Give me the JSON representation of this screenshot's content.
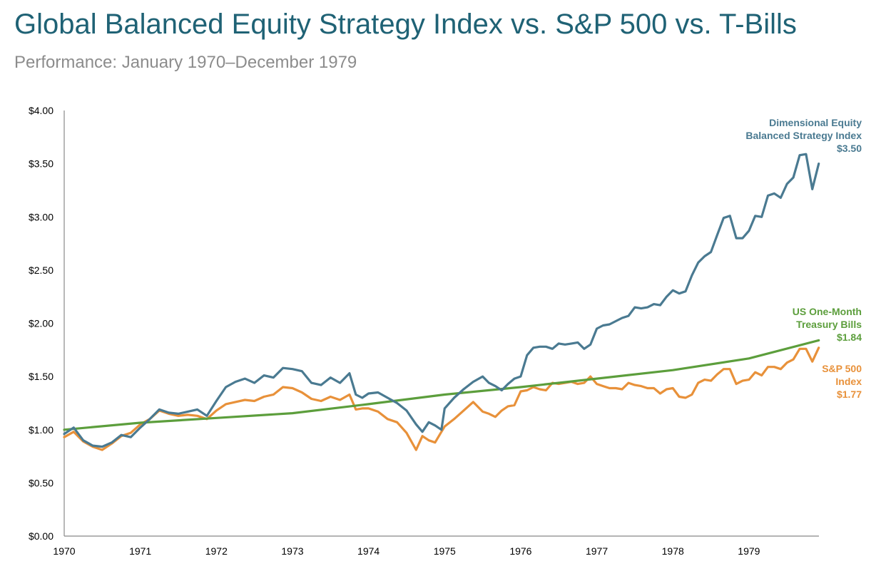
{
  "chart_data": {
    "type": "line",
    "title": "Global Balanced Equity Strategy Index vs. S&P 500 vs. T-Bills",
    "subtitle": "Performance: January 1970–December 1979",
    "xlabel": "",
    "ylabel": "",
    "xlim": [
      1970,
      1979.92
    ],
    "ylim": [
      0,
      4
    ],
    "x_ticks": [
      "1970",
      "1971",
      "1972",
      "1973",
      "1974",
      "1975",
      "1976",
      "1977",
      "1978",
      "1979"
    ],
    "y_ticks": [
      "$0.00",
      "$0.50",
      "$1.00",
      "$1.50",
      "$2.00",
      "$2.50",
      "$3.00",
      "$3.50",
      "$4.00"
    ],
    "grid": false,
    "series": [
      {
        "name": "Dimensional Equity Balanced Strategy Index",
        "label_lines": [
          "Dimensional Equity",
          "Balanced Strategy Index",
          "$3.50"
        ],
        "color": "#4a7a91",
        "points": [
          [
            1970.0,
            0.96
          ],
          [
            1970.125,
            1.02
          ],
          [
            1970.25,
            0.9
          ],
          [
            1970.375,
            0.85
          ],
          [
            1970.5,
            0.84
          ],
          [
            1970.625,
            0.88
          ],
          [
            1970.75,
            0.95
          ],
          [
            1970.875,
            0.93
          ],
          [
            1971.0,
            1.02
          ],
          [
            1971.125,
            1.1
          ],
          [
            1971.25,
            1.19
          ],
          [
            1971.375,
            1.16
          ],
          [
            1971.5,
            1.15
          ],
          [
            1971.625,
            1.17
          ],
          [
            1971.75,
            1.19
          ],
          [
            1971.875,
            1.13
          ],
          [
            1972.0,
            1.27
          ],
          [
            1972.125,
            1.4
          ],
          [
            1972.25,
            1.45
          ],
          [
            1972.375,
            1.48
          ],
          [
            1972.5,
            1.44
          ],
          [
            1972.625,
            1.51
          ],
          [
            1972.75,
            1.49
          ],
          [
            1972.875,
            1.58
          ],
          [
            1973.0,
            1.57
          ],
          [
            1973.125,
            1.55
          ],
          [
            1973.25,
            1.44
          ],
          [
            1973.375,
            1.42
          ],
          [
            1973.5,
            1.49
          ],
          [
            1973.625,
            1.44
          ],
          [
            1973.75,
            1.53
          ],
          [
            1973.833,
            1.33
          ],
          [
            1973.917,
            1.3
          ],
          [
            1974.0,
            1.34
          ],
          [
            1974.125,
            1.35
          ],
          [
            1974.25,
            1.3
          ],
          [
            1974.375,
            1.25
          ],
          [
            1974.5,
            1.18
          ],
          [
            1974.625,
            1.05
          ],
          [
            1974.708,
            0.98
          ],
          [
            1974.792,
            1.07
          ],
          [
            1974.875,
            1.04
          ],
          [
            1974.958,
            1.0
          ],
          [
            1975.0,
            1.2
          ],
          [
            1975.125,
            1.3
          ],
          [
            1975.25,
            1.38
          ],
          [
            1975.375,
            1.45
          ],
          [
            1975.5,
            1.5
          ],
          [
            1975.583,
            1.44
          ],
          [
            1975.667,
            1.41
          ],
          [
            1975.75,
            1.37
          ],
          [
            1975.833,
            1.43
          ],
          [
            1975.917,
            1.48
          ],
          [
            1976.0,
            1.5
          ],
          [
            1976.083,
            1.7
          ],
          [
            1976.167,
            1.77
          ],
          [
            1976.25,
            1.78
          ],
          [
            1976.333,
            1.78
          ],
          [
            1976.417,
            1.76
          ],
          [
            1976.5,
            1.81
          ],
          [
            1976.583,
            1.8
          ],
          [
            1976.667,
            1.81
          ],
          [
            1976.75,
            1.82
          ],
          [
            1976.833,
            1.76
          ],
          [
            1976.917,
            1.8
          ],
          [
            1977.0,
            1.95
          ],
          [
            1977.083,
            1.98
          ],
          [
            1977.167,
            1.99
          ],
          [
            1977.25,
            2.02
          ],
          [
            1977.333,
            2.05
          ],
          [
            1977.417,
            2.07
          ],
          [
            1977.5,
            2.15
          ],
          [
            1977.583,
            2.14
          ],
          [
            1977.667,
            2.15
          ],
          [
            1977.75,
            2.18
          ],
          [
            1977.833,
            2.17
          ],
          [
            1977.917,
            2.25
          ],
          [
            1978.0,
            2.31
          ],
          [
            1978.083,
            2.28
          ],
          [
            1978.167,
            2.3
          ],
          [
            1978.25,
            2.45
          ],
          [
            1978.333,
            2.57
          ],
          [
            1978.417,
            2.63
          ],
          [
            1978.5,
            2.67
          ],
          [
            1978.583,
            2.83
          ],
          [
            1978.667,
            2.99
          ],
          [
            1978.75,
            3.01
          ],
          [
            1978.833,
            2.8
          ],
          [
            1978.917,
            2.8
          ],
          [
            1979.0,
            2.87
          ],
          [
            1979.083,
            3.01
          ],
          [
            1979.167,
            3.0
          ],
          [
            1979.25,
            3.2
          ],
          [
            1979.333,
            3.22
          ],
          [
            1979.417,
            3.18
          ],
          [
            1979.5,
            3.31
          ],
          [
            1979.583,
            3.37
          ],
          [
            1979.667,
            3.58
          ],
          [
            1979.75,
            3.59
          ],
          [
            1979.833,
            3.26
          ],
          [
            1979.917,
            3.5
          ]
        ]
      },
      {
        "name": "US One-Month Treasury Bills",
        "label_lines": [
          "US One-Month",
          "Treasury Bills",
          "$1.84"
        ],
        "color": "#5c9e3c",
        "points": [
          [
            1970.0,
            1.0
          ],
          [
            1971.0,
            1.065
          ],
          [
            1972.0,
            1.11
          ],
          [
            1973.0,
            1.155
          ],
          [
            1974.0,
            1.24
          ],
          [
            1975.0,
            1.33
          ],
          [
            1976.0,
            1.4
          ],
          [
            1977.0,
            1.48
          ],
          [
            1978.0,
            1.56
          ],
          [
            1979.0,
            1.67
          ],
          [
            1979.917,
            1.84
          ]
        ]
      },
      {
        "name": "S&P 500 Index",
        "label_lines": [
          "S&P 500",
          "Index",
          "$1.77"
        ],
        "color": "#e8913a",
        "points": [
          [
            1970.0,
            0.93
          ],
          [
            1970.125,
            0.98
          ],
          [
            1970.25,
            0.89
          ],
          [
            1970.375,
            0.84
          ],
          [
            1970.5,
            0.81
          ],
          [
            1970.625,
            0.87
          ],
          [
            1970.75,
            0.94
          ],
          [
            1970.875,
            0.97
          ],
          [
            1971.0,
            1.05
          ],
          [
            1971.125,
            1.1
          ],
          [
            1971.25,
            1.18
          ],
          [
            1971.375,
            1.15
          ],
          [
            1971.5,
            1.13
          ],
          [
            1971.625,
            1.14
          ],
          [
            1971.75,
            1.13
          ],
          [
            1971.875,
            1.1
          ],
          [
            1972.0,
            1.18
          ],
          [
            1972.125,
            1.24
          ],
          [
            1972.25,
            1.26
          ],
          [
            1972.375,
            1.28
          ],
          [
            1972.5,
            1.27
          ],
          [
            1972.625,
            1.31
          ],
          [
            1972.75,
            1.33
          ],
          [
            1972.875,
            1.4
          ],
          [
            1973.0,
            1.39
          ],
          [
            1973.125,
            1.35
          ],
          [
            1973.25,
            1.29
          ],
          [
            1973.375,
            1.27
          ],
          [
            1973.5,
            1.31
          ],
          [
            1973.625,
            1.28
          ],
          [
            1973.75,
            1.33
          ],
          [
            1973.833,
            1.19
          ],
          [
            1973.917,
            1.2
          ],
          [
            1974.0,
            1.2
          ],
          [
            1974.125,
            1.17
          ],
          [
            1974.25,
            1.1
          ],
          [
            1974.375,
            1.07
          ],
          [
            1974.5,
            0.97
          ],
          [
            1974.625,
            0.81
          ],
          [
            1974.708,
            0.94
          ],
          [
            1974.792,
            0.9
          ],
          [
            1974.875,
            0.88
          ],
          [
            1974.958,
            0.98
          ],
          [
            1975.0,
            1.03
          ],
          [
            1975.125,
            1.1
          ],
          [
            1975.25,
            1.18
          ],
          [
            1975.375,
            1.26
          ],
          [
            1975.5,
            1.17
          ],
          [
            1975.583,
            1.15
          ],
          [
            1975.667,
            1.12
          ],
          [
            1975.75,
            1.18
          ],
          [
            1975.833,
            1.22
          ],
          [
            1975.917,
            1.23
          ],
          [
            1976.0,
            1.36
          ],
          [
            1976.083,
            1.37
          ],
          [
            1976.167,
            1.4
          ],
          [
            1976.25,
            1.38
          ],
          [
            1976.333,
            1.37
          ],
          [
            1976.417,
            1.44
          ],
          [
            1976.5,
            1.43
          ],
          [
            1976.583,
            1.44
          ],
          [
            1976.667,
            1.45
          ],
          [
            1976.75,
            1.43
          ],
          [
            1976.833,
            1.44
          ],
          [
            1976.917,
            1.5
          ],
          [
            1977.0,
            1.43
          ],
          [
            1977.083,
            1.41
          ],
          [
            1977.167,
            1.39
          ],
          [
            1977.25,
            1.39
          ],
          [
            1977.333,
            1.38
          ],
          [
            1977.417,
            1.44
          ],
          [
            1977.5,
            1.42
          ],
          [
            1977.583,
            1.41
          ],
          [
            1977.667,
            1.39
          ],
          [
            1977.75,
            1.39
          ],
          [
            1977.833,
            1.34
          ],
          [
            1977.917,
            1.38
          ],
          [
            1978.0,
            1.39
          ],
          [
            1978.083,
            1.31
          ],
          [
            1978.167,
            1.3
          ],
          [
            1978.25,
            1.33
          ],
          [
            1978.333,
            1.44
          ],
          [
            1978.417,
            1.47
          ],
          [
            1978.5,
            1.46
          ],
          [
            1978.583,
            1.52
          ],
          [
            1978.667,
            1.57
          ],
          [
            1978.75,
            1.57
          ],
          [
            1978.833,
            1.43
          ],
          [
            1978.917,
            1.46
          ],
          [
            1979.0,
            1.47
          ],
          [
            1979.083,
            1.54
          ],
          [
            1979.167,
            1.51
          ],
          [
            1979.25,
            1.59
          ],
          [
            1979.333,
            1.59
          ],
          [
            1979.417,
            1.57
          ],
          [
            1979.5,
            1.63
          ],
          [
            1979.583,
            1.66
          ],
          [
            1979.667,
            1.76
          ],
          [
            1979.75,
            1.76
          ],
          [
            1979.833,
            1.64
          ],
          [
            1979.917,
            1.77
          ]
        ]
      }
    ]
  }
}
